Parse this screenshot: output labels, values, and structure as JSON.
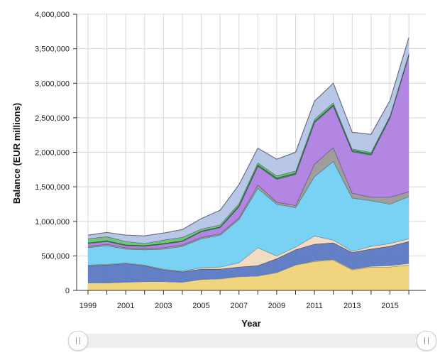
{
  "chart_data": {
    "type": "area",
    "stacked": true,
    "title": "",
    "xlabel": "Year",
    "ylabel": "Balance (EUR millions)",
    "x": [
      1999,
      2000,
      2001,
      2002,
      2003,
      2004,
      2005,
      2006,
      2007,
      2008,
      2009,
      2010,
      2011,
      2012,
      2013,
      2014,
      2015,
      2016
    ],
    "xticks": [
      "1999",
      "2001",
      "2003",
      "2005",
      "2007",
      "2009",
      "2011",
      "2013",
      "2015"
    ],
    "ylim": [
      0,
      4000000
    ],
    "yticks": [
      "0",
      "500,000",
      "1,000,000",
      "1,500,000",
      "2,000,000",
      "2,500,000",
      "3,000,000",
      "3,500,000",
      "4,000,000"
    ],
    "grid": true,
    "legend": "none",
    "series": [
      {
        "color": "#efd277",
        "values": [
          110000,
          110000,
          120000,
          130000,
          130000,
          120000,
          160000,
          170000,
          200000,
          210000,
          260000,
          370000,
          420000,
          440000,
          300000,
          340000,
          340000,
          370000
        ]
      },
      {
        "color": "#fbf0b7",
        "values": [
          0,
          0,
          0,
          0,
          0,
          0,
          0,
          0,
          0,
          0,
          0,
          0,
          10000,
          10000,
          10000,
          10000,
          20000,
          20000
        ]
      },
      {
        "color": "#5b78c2",
        "values": [
          250000,
          260000,
          270000,
          230000,
          170000,
          150000,
          150000,
          140000,
          140000,
          150000,
          200000,
          220000,
          240000,
          240000,
          240000,
          250000,
          280000,
          320000
        ]
      },
      {
        "color": "#f1d9c0",
        "values": [
          10000,
          10000,
          10000,
          10000,
          10000,
          10000,
          20000,
          30000,
          60000,
          260000,
          40000,
          40000,
          120000,
          40000,
          20000,
          40000,
          40000,
          40000
        ]
      },
      {
        "color": "#72cff2",
        "values": [
          250000,
          270000,
          200000,
          220000,
          290000,
          360000,
          420000,
          460000,
          630000,
          860000,
          750000,
          570000,
          860000,
          1140000,
          770000,
          660000,
          570000,
          610000
        ]
      },
      {
        "color": "#999999",
        "values": [
          20000,
          20000,
          20000,
          20000,
          20000,
          20000,
          20000,
          20000,
          20000,
          50000,
          30000,
          30000,
          180000,
          200000,
          70000,
          50000,
          100000,
          70000
        ]
      },
      {
        "color": "#b07fe2",
        "values": [
          40000,
          40000,
          30000,
          30000,
          50000,
          50000,
          80000,
          90000,
          160000,
          270000,
          330000,
          450000,
          600000,
          600000,
          600000,
          610000,
          1150000,
          1970000
        ]
      },
      {
        "color": "#2e8b57",
        "values": [
          10000,
          10000,
          10000,
          10000,
          10000,
          10000,
          10000,
          10000,
          20000,
          20000,
          20000,
          20000,
          20000,
          20000,
          20000,
          20000,
          20000,
          20000
        ]
      },
      {
        "color": "#6cc07a",
        "values": [
          60000,
          60000,
          50000,
          30000,
          50000,
          50000,
          30000,
          30000,
          30000,
          30000,
          30000,
          30000,
          30000,
          30000,
          20000,
          20000,
          10000,
          10000
        ]
      },
      {
        "color": "#b4c4e6",
        "values": [
          50000,
          60000,
          90000,
          110000,
          100000,
          110000,
          150000,
          210000,
          270000,
          210000,
          240000,
          270000,
          260000,
          280000,
          240000,
          260000,
          220000,
          230000
        ]
      }
    ]
  },
  "scrollbar": {
    "left_grip": "grip-icon",
    "right_grip": "grip-icon"
  }
}
